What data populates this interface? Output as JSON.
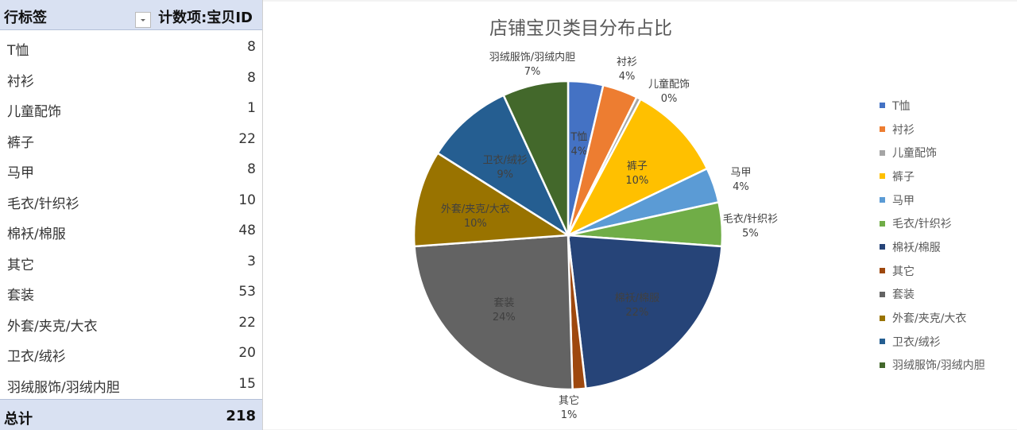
{
  "pivot": {
    "header": {
      "row_label": "行标签",
      "value_label": "计数项:宝贝ID"
    },
    "rows": [
      {
        "label": "T恤",
        "value": "8"
      },
      {
        "label": "衬衫",
        "value": "8"
      },
      {
        "label": "儿童配饰",
        "value": "1"
      },
      {
        "label": "裤子",
        "value": "22"
      },
      {
        "label": "马甲",
        "value": "8"
      },
      {
        "label": "毛衣/针织衫",
        "value": "10"
      },
      {
        "label": "棉袄/棉服",
        "value": "48"
      },
      {
        "label": "其它",
        "value": "3"
      },
      {
        "label": "套装",
        "value": "53"
      },
      {
        "label": "外套/夹克/大衣",
        "value": "22"
      },
      {
        "label": "卫衣/绒衫",
        "value": "20"
      },
      {
        "label": "羽绒服饰/羽绒内胆",
        "value": "15"
      }
    ],
    "total": {
      "label": "总计",
      "value": "218"
    }
  },
  "chart_data": {
    "type": "pie",
    "title": "店铺宝贝类目分布占比",
    "categories": [
      "T恤",
      "衬衫",
      "儿童配饰",
      "裤子",
      "马甲",
      "毛衣/针织衫",
      "棉袄/棉服",
      "其它",
      "套装",
      "外套/夹克/大衣",
      "卫衣/绒衫",
      "羽绒服饰/羽绒内胆"
    ],
    "values": [
      8,
      8,
      1,
      22,
      8,
      10,
      48,
      3,
      53,
      22,
      20,
      15
    ],
    "percent_labels": [
      "4%",
      "4%",
      "0%",
      "10%",
      "4%",
      "5%",
      "22%",
      "1%",
      "24%",
      "10%",
      "9%",
      "7%"
    ],
    "colors": [
      "#4472c4",
      "#ed7d31",
      "#a5a5a5",
      "#ffc000",
      "#5b9bd5",
      "#70ad47",
      "#264478",
      "#9e480e",
      "#636363",
      "#997300",
      "#255e91",
      "#43682b"
    ],
    "legend_position": "right",
    "start_angle": "12 o'clock, clockwise"
  }
}
